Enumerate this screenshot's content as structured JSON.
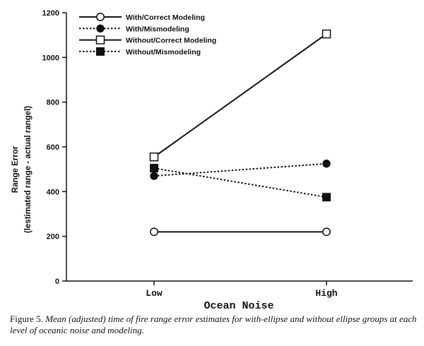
{
  "chart_data": {
    "type": "line",
    "xlabel": "Ocean Noise",
    "ylabel": [
      "Range Error",
      "(lestimated range - actual rangel)"
    ],
    "categories": [
      "Low",
      "High"
    ],
    "ylim": [
      0,
      1200
    ],
    "yticks": [
      0,
      200,
      400,
      600,
      800,
      1000,
      1200
    ],
    "legend_position": "top-left",
    "series": [
      {
        "name": "With/Correct Modeling",
        "values": [
          220,
          220
        ],
        "marker": "open-circle",
        "line": "solid"
      },
      {
        "name": "With/Mismodeling",
        "values": [
          470,
          525
        ],
        "marker": "filled-circle",
        "line": "dotted"
      },
      {
        "name": "Without/Correct Modeling",
        "values": [
          555,
          1105
        ],
        "marker": "open-square",
        "line": "solid"
      },
      {
        "name": "Without/Mismodeling",
        "values": [
          505,
          375
        ],
        "marker": "filled-square",
        "line": "dotted"
      }
    ]
  },
  "caption": {
    "label": "Figure 5.",
    "text": "Mean (adjusted) time of fire range error estimates for with-ellipse and without ellipse groups at each level of oceanic noise and modeling."
  }
}
